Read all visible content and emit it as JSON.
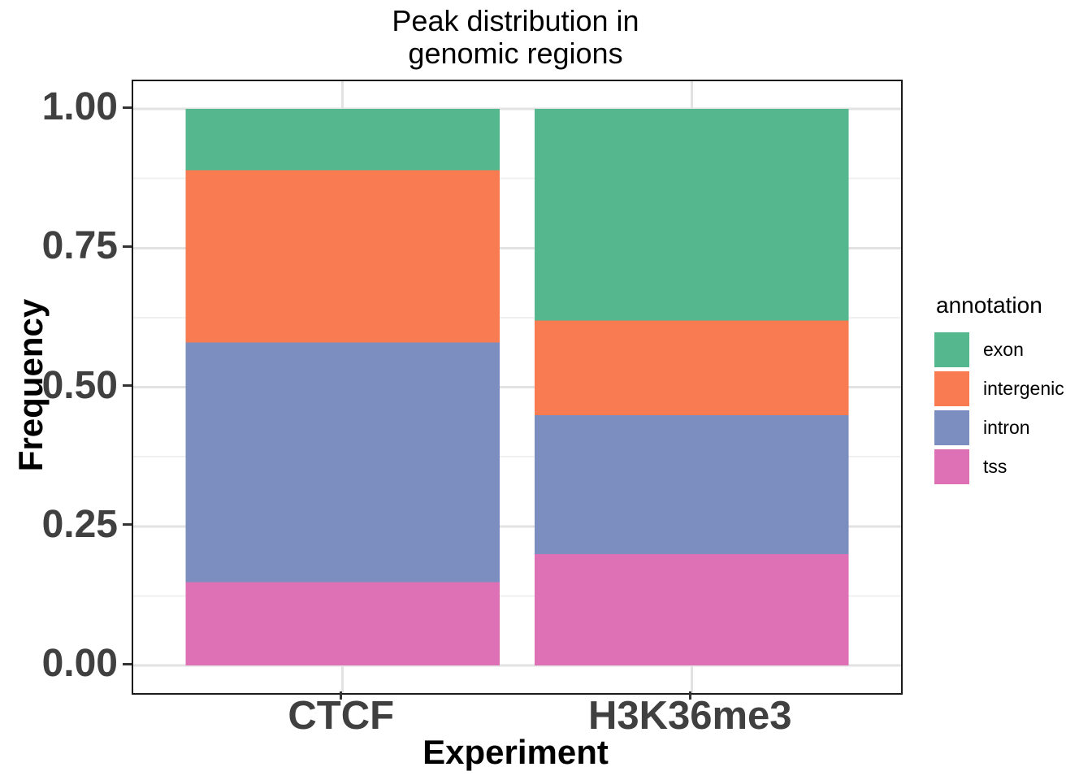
{
  "title": {
    "line1": "Peak distribution in",
    "line2": "genomic regions"
  },
  "chart_data": {
    "type": "bar",
    "stacked": true,
    "title": "Peak distribution in genomic regions",
    "xlabel": "Experiment",
    "ylabel": "Frequency",
    "categories": [
      "CTCF",
      "H3K36me3"
    ],
    "series": [
      {
        "name": "exon",
        "color": "#55B78D",
        "values": [
          0.11,
          0.38
        ]
      },
      {
        "name": "intergenic",
        "color": "#F87B52",
        "values": [
          0.31,
          0.17
        ]
      },
      {
        "name": "intron",
        "color": "#7C8EC0",
        "values": [
          0.43,
          0.25
        ]
      },
      {
        "name": "tss",
        "color": "#DE71B6",
        "values": [
          0.15,
          0.2
        ]
      }
    ],
    "stack_order_bottom_to_top": [
      "tss",
      "intron",
      "intergenic",
      "exon"
    ],
    "ylim": [
      0,
      1
    ],
    "yticks": [
      0,
      0.25,
      0.5,
      0.75,
      1
    ],
    "ytick_labels": [
      "0.00",
      "0.25",
      "0.50",
      "0.75",
      "1.00"
    ],
    "grid": true,
    "legend_title": "annotation",
    "legend_position": "right"
  },
  "style": {
    "grid_major_color": "#E2E2E2",
    "grid_minor_color": "#F0F0F0",
    "panel_border_color": "#1A1A1A",
    "tick_color": "#333333",
    "axis_text_color": "#404040",
    "axis_title_color": "#000000",
    "title_color": "#000000"
  }
}
